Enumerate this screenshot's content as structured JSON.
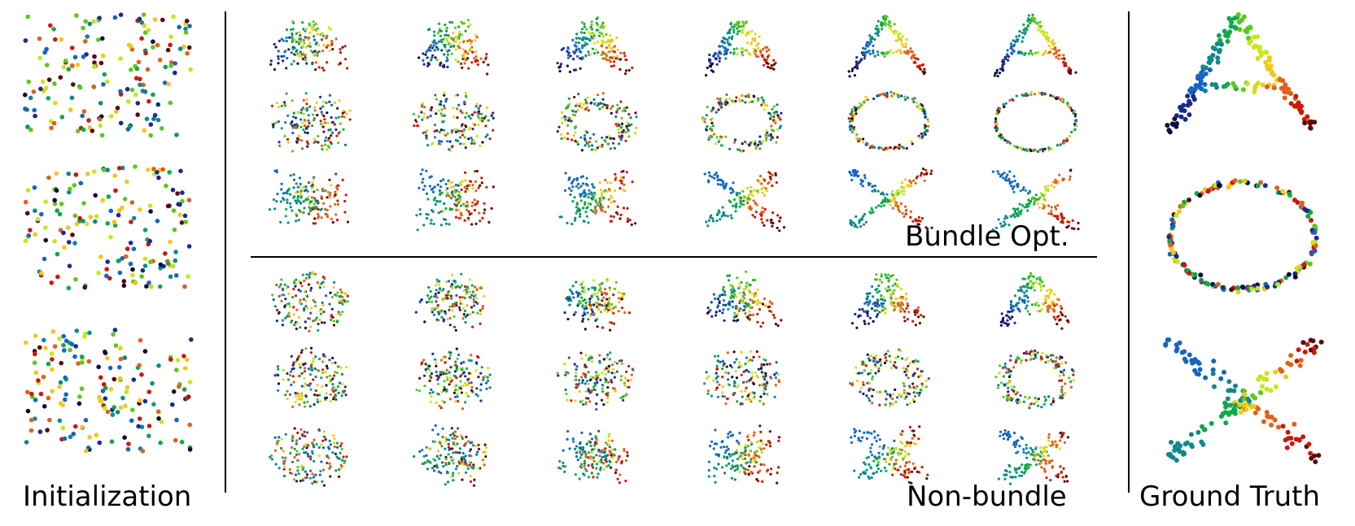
{
  "labels": {
    "initialization": "Initialization",
    "bundle": "Bundle Opt.",
    "nonbundle": "Non-bundle",
    "ground_truth": "Ground Truth"
  },
  "shapes": [
    "A",
    "O",
    "X"
  ],
  "colormap": [
    "#0b0b3a",
    "#1a2a8c",
    "#1565c0",
    "#0d8a8a",
    "#11a84a",
    "#5cc81c",
    "#c8e619",
    "#f2c71a",
    "#e0601a",
    "#c81a0a",
    "#5a0a0a"
  ],
  "sections": {
    "initialization": {
      "rows": 3,
      "cols": 1
    },
    "bundle": {
      "rows": 3,
      "cols": 6
    },
    "nonbundle": {
      "rows": 3,
      "cols": 6
    },
    "ground_truth": {
      "rows": 3,
      "cols": 1
    }
  }
}
